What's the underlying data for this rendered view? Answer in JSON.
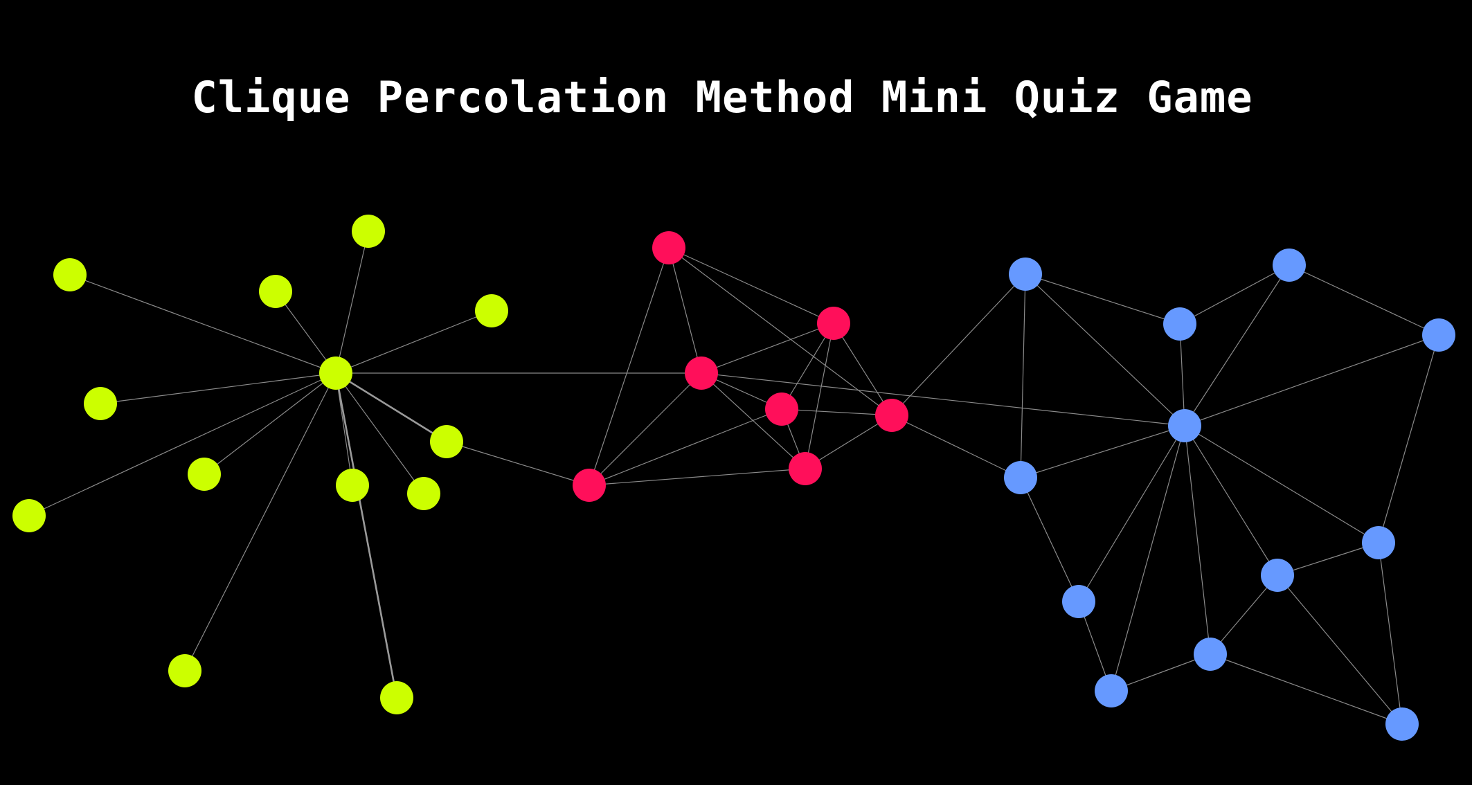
{
  "title": "Clique Percolation Method Mini Quiz Game",
  "colors": {
    "background": "#000000",
    "edge": "#8a8a8a",
    "edge_strong": "#9a9a9a",
    "community_green": "#ccff00",
    "community_red": "#ff0f5a",
    "community_blue": "#6699ff"
  }
}
